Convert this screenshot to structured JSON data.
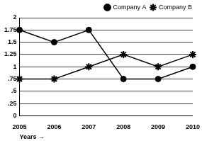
{
  "chart_data": {
    "type": "line",
    "x_label": "Years →",
    "categories": [
      "2005",
      "2006",
      "2007",
      "2008",
      "2009",
      "2010"
    ],
    "series": [
      {
        "name": "Company A",
        "color": "#000000",
        "marker": "circle",
        "line_style": "solid",
        "values": [
          1.75,
          1.5,
          1.75,
          0.75,
          0.75,
          1
        ]
      },
      {
        "name": "Company B",
        "color": "#000000",
        "marker": "star",
        "line_style": "solid",
        "values": [
          0.75,
          0.75,
          1,
          1.25,
          1,
          1.25
        ]
      }
    ],
    "ylim": [
      0,
      2
    ],
    "yticks": [
      0,
      {
        "value": 0.25,
        "label": ".25"
      },
      {
        "value": 0.5,
        "label": ".5"
      },
      {
        "value": 0.75,
        "label": ".75"
      },
      1,
      1.25,
      1.5,
      1.75,
      2
    ],
    "grid": true,
    "legend": "top-right"
  }
}
